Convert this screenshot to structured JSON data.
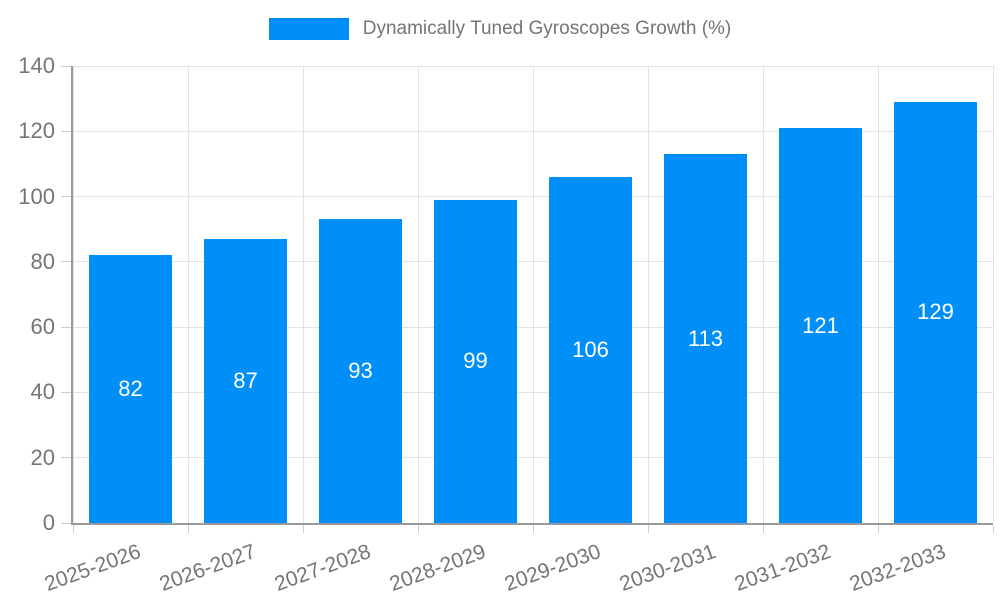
{
  "chart_data": {
    "type": "bar",
    "legend_label": "Dynamically Tuned Gyroscopes Growth (%)",
    "categories": [
      "2025-2026",
      "2026-2027",
      "2027-2028",
      "2028-2029",
      "2029-2030",
      "2030-2031",
      "2031-2032",
      "2032-2033"
    ],
    "values": [
      82,
      87,
      93,
      99,
      106,
      113,
      121,
      129
    ],
    "value_labels": [
      "82",
      "87",
      "93",
      "99",
      "106",
      "113",
      "121",
      "129"
    ],
    "yticks": [
      0,
      20,
      40,
      60,
      80,
      100,
      120,
      140
    ],
    "ylim": [
      0,
      140
    ],
    "xlabel": "",
    "ylabel": "",
    "grid": true,
    "legend_position": "top-center",
    "x_label_rotation_deg": -20,
    "value_label_position": "center-of-bar",
    "colors": {
      "bar": "#008FF8",
      "grid": "#E2E2E2",
      "axis": "#9A9A9A",
      "tick": "#CCCCCC",
      "tick_label": "#757575",
      "legend_label": "#757575",
      "value_label": "#FFFFFF",
      "background": "#FFFFFF"
    }
  }
}
